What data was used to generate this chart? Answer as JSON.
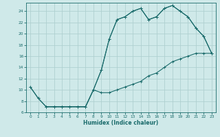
{
  "xlabel": "Humidex (Indice chaleur)",
  "background_color": "#cfe9e9",
  "grid_color": "#afd0d0",
  "line_color": "#1a6b6b",
  "xlim": [
    -0.5,
    23.5
  ],
  "ylim": [
    6,
    25.5
  ],
  "yticks": [
    6,
    8,
    10,
    12,
    14,
    16,
    18,
    20,
    22,
    24
  ],
  "xticks": [
    0,
    1,
    2,
    3,
    4,
    5,
    6,
    7,
    8,
    9,
    10,
    11,
    12,
    13,
    14,
    15,
    16,
    17,
    18,
    19,
    20,
    21,
    22,
    23
  ],
  "line1_x": [
    0,
    1,
    2,
    3,
    4,
    5,
    6,
    7,
    8,
    9,
    10,
    11,
    12,
    13,
    14,
    15,
    16,
    17,
    18,
    19,
    20,
    21,
    22,
    23
  ],
  "line1_y": [
    10.5,
    8.5,
    7.0,
    7.0,
    7.0,
    7.0,
    7.0,
    7.0,
    10.0,
    13.5,
    19.0,
    22.5,
    23.0,
    24.0,
    24.5,
    22.5,
    23.0,
    24.5,
    25.0,
    24.0,
    23.0,
    21.0,
    19.5,
    16.5
  ],
  "line2_x": [
    0,
    1,
    2,
    3,
    4,
    5,
    6,
    7,
    8,
    9,
    10,
    11,
    12,
    13,
    14,
    15,
    16,
    17,
    18,
    19,
    20,
    21,
    22,
    23
  ],
  "line2_y": [
    10.5,
    8.5,
    7.0,
    7.0,
    7.0,
    7.0,
    7.0,
    7.0,
    10.0,
    9.5,
    9.5,
    10.0,
    10.5,
    11.0,
    11.5,
    12.5,
    13.0,
    14.0,
    15.0,
    15.5,
    16.0,
    16.5,
    16.5,
    16.5
  ],
  "line3_x": [
    2,
    3,
    4,
    5,
    6,
    7,
    8,
    9,
    10,
    11,
    12,
    13,
    14,
    15,
    16,
    17,
    18,
    19,
    20,
    21,
    22,
    23
  ],
  "line3_y": [
    7.0,
    7.0,
    7.0,
    7.0,
    7.0,
    7.0,
    10.0,
    13.5,
    19.0,
    22.5,
    23.0,
    24.0,
    24.5,
    22.5,
    23.0,
    24.5,
    25.0,
    24.0,
    23.0,
    21.0,
    19.5,
    16.5
  ]
}
